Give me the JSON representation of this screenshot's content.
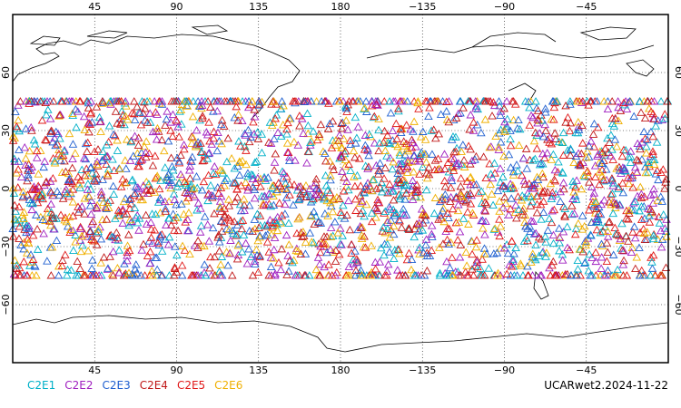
{
  "map": {
    "top_lon_labels": [
      "45",
      "90",
      "135",
      "180",
      "−135",
      "−90",
      "−45"
    ],
    "bottom_lon_labels": [
      "45",
      "90",
      "135",
      "180",
      "−135",
      "−90",
      "−45"
    ],
    "lat_labels_left": [
      "60",
      "30",
      "0",
      "−30",
      "−60"
    ],
    "lat_labels_right": [
      "60",
      "30",
      "0",
      "−30",
      "−60"
    ],
    "lon_range": [
      0,
      360
    ],
    "lat_range": [
      -90,
      90
    ],
    "grid": "dotted"
  },
  "legend": [
    {
      "label": "C2E1",
      "color": "#00b0c8"
    },
    {
      "label": "C2E2",
      "color": "#a020c0"
    },
    {
      "label": "C2E3",
      "color": "#2060d0"
    },
    {
      "label": "C2E4",
      "color": "#c01818"
    },
    {
      "label": "C2E5",
      "color": "#e01818"
    },
    {
      "label": "C2E6",
      "color": "#f0b000"
    }
  ],
  "caption": "UCARwet2.2024-11-22",
  "observation_band": {
    "lat_min": -45,
    "lat_max": 45
  }
}
